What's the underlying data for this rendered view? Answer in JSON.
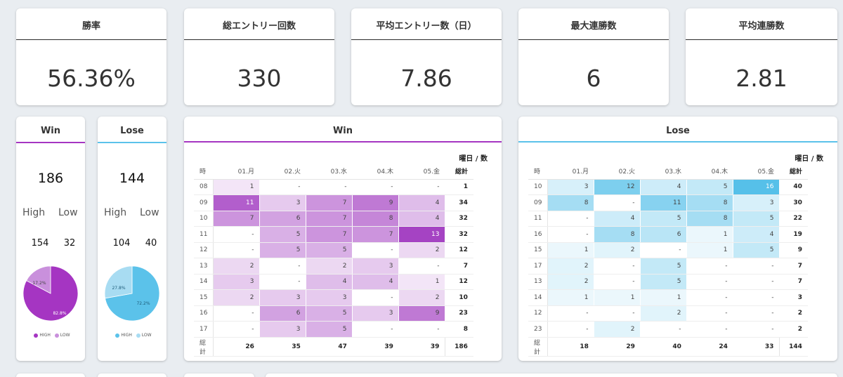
{
  "kpis": [
    {
      "title": "勝率",
      "value": "56.36%"
    },
    {
      "title": "総エントリー回数",
      "value": "330"
    },
    {
      "title": "平均エントリー数（日）",
      "value": "7.86"
    },
    {
      "title": "最大連勝数",
      "value": "6"
    },
    {
      "title": "平均連勝数",
      "value": "2.81"
    }
  ],
  "win_card": {
    "title": "Win",
    "total": "186",
    "high_label": "High",
    "low_label": "Low",
    "high": "154",
    "low": "32",
    "pct_high": "82.8%",
    "pct_low": "17.2%",
    "high_fraction": 0.828,
    "legend_high": "HIGH",
    "legend_low": "LOW",
    "color_high": "#a535c2",
    "color_low": "#c990dc"
  },
  "lose_card": {
    "title": "Lose",
    "total": "144",
    "high_label": "High",
    "low_label": "Low",
    "high": "104",
    "low": "40",
    "pct_high": "72.2%",
    "pct_low": "27.8%",
    "high_fraction": 0.722,
    "legend_high": "HIGH",
    "legend_low": "LOW",
    "color_high": "#5bc2ea",
    "color_low": "#a8dcf2"
  },
  "win_heatmap": {
    "title": "Win",
    "axis_label": "曜日 / 数",
    "hour_header": "時",
    "total_header": "総計",
    "days": [
      "01.月",
      "02.火",
      "03.水",
      "04.木",
      "05.金"
    ],
    "rows": [
      {
        "hour": "08",
        "cells": [
          "1",
          "-",
          "-",
          "-",
          "-"
        ],
        "total": "1"
      },
      {
        "hour": "09",
        "cells": [
          "11",
          "3",
          "7",
          "9",
          "4"
        ],
        "total": "34"
      },
      {
        "hour": "10",
        "cells": [
          "7",
          "6",
          "7",
          "8",
          "4"
        ],
        "total": "32"
      },
      {
        "hour": "11",
        "cells": [
          "-",
          "5",
          "7",
          "7",
          "13"
        ],
        "total": "32"
      },
      {
        "hour": "12",
        "cells": [
          "-",
          "5",
          "5",
          "-",
          "2"
        ],
        "total": "12"
      },
      {
        "hour": "13",
        "cells": [
          "2",
          "-",
          "2",
          "3",
          "-"
        ],
        "total": "7"
      },
      {
        "hour": "14",
        "cells": [
          "3",
          "-",
          "4",
          "4",
          "1"
        ],
        "total": "12"
      },
      {
        "hour": "15",
        "cells": [
          "2",
          "3",
          "3",
          "-",
          "2"
        ],
        "total": "10"
      },
      {
        "hour": "16",
        "cells": [
          "-",
          "6",
          "5",
          "3",
          "9"
        ],
        "total": "23"
      },
      {
        "hour": "17",
        "cells": [
          "-",
          "3",
          "5",
          "-",
          "-"
        ],
        "total": "8"
      }
    ],
    "sum_label": "総計",
    "sums": [
      "26",
      "35",
      "47",
      "39",
      "39"
    ],
    "grand_total": "186",
    "color": "#9f37bf"
  },
  "lose_heatmap": {
    "title": "Lose",
    "axis_label": "曜日 / 数",
    "hour_header": "時",
    "total_header": "総計",
    "days": [
      "01.月",
      "02.火",
      "03.水",
      "04.木",
      "05.金"
    ],
    "rows": [
      {
        "hour": "10",
        "cells": [
          "3",
          "12",
          "4",
          "5",
          "16"
        ],
        "total": "40"
      },
      {
        "hour": "09",
        "cells": [
          "8",
          "-",
          "11",
          "8",
          "3"
        ],
        "total": "30"
      },
      {
        "hour": "11",
        "cells": [
          "-",
          "4",
          "5",
          "8",
          "5"
        ],
        "total": "22"
      },
      {
        "hour": "16",
        "cells": [
          "-",
          "8",
          "6",
          "1",
          "4"
        ],
        "total": "19"
      },
      {
        "hour": "15",
        "cells": [
          "1",
          "2",
          "-",
          "1",
          "5"
        ],
        "total": "9"
      },
      {
        "hour": "17",
        "cells": [
          "2",
          "-",
          "5",
          "-",
          "-"
        ],
        "total": "7"
      },
      {
        "hour": "13",
        "cells": [
          "2",
          "-",
          "5",
          "-",
          "-"
        ],
        "total": "7"
      },
      {
        "hour": "14",
        "cells": [
          "1",
          "1",
          "1",
          "-",
          "-"
        ],
        "total": "3"
      },
      {
        "hour": "12",
        "cells": [
          "-",
          "-",
          "2",
          "-",
          "-"
        ],
        "total": "2"
      },
      {
        "hour": "23",
        "cells": [
          "-",
          "2",
          "-",
          "-",
          "-"
        ],
        "total": "2"
      }
    ],
    "sum_label": "総計",
    "sums": [
      "18",
      "29",
      "40",
      "24",
      "33"
    ],
    "grand_total": "144",
    "color": "#4bbce8"
  }
}
